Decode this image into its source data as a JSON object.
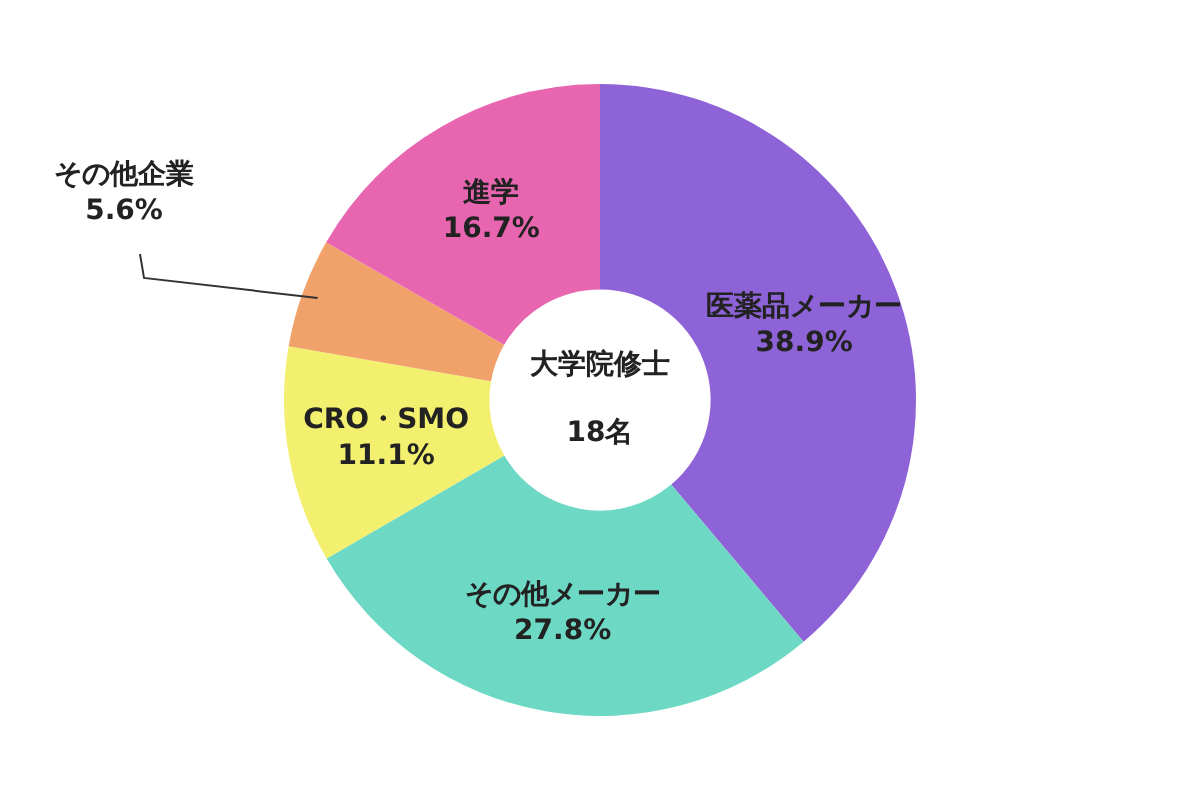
{
  "chart_data": {
    "type": "donut",
    "categories": [
      "医薬品メーカー",
      "その他メーカー",
      "CRO・SMO",
      "その他企業",
      "進学"
    ],
    "values": [
      38.9,
      27.8,
      11.1,
      5.6,
      16.7
    ],
    "colors": [
      "#8e63d8",
      "#6dd9c4",
      "#f2f06e",
      "#f0a26a",
      "#e866b0"
    ],
    "value_labels": [
      "38.9%",
      "27.8%",
      "11.1%",
      "5.6%",
      "16.7%"
    ],
    "annotations": [
      "大学院修士",
      "18名"
    ],
    "legend": false
  }
}
